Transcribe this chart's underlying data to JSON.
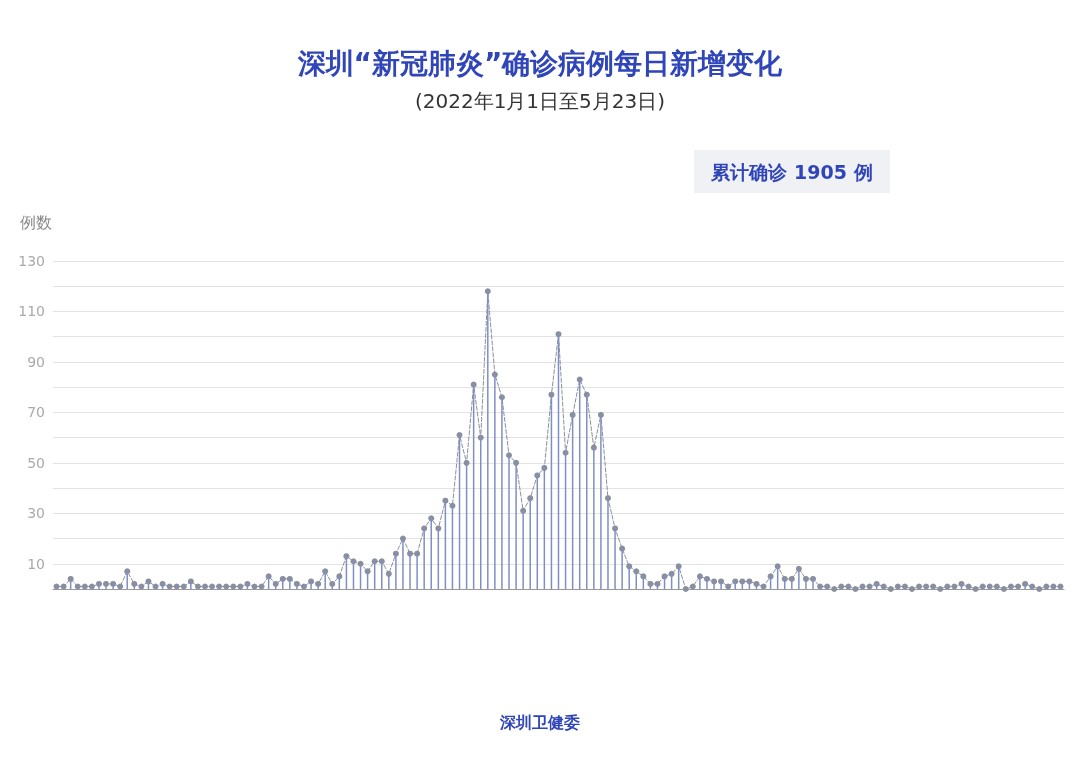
{
  "chart_data": {
    "type": "line",
    "title": "深圳“新冠肺炎”确诊病例每日新增变化",
    "subtitle": "(2022年1月1日至5月23日)",
    "ylabel": "例数",
    "annotations": [
      "累计确诊 1905 例",
      "深圳卫健委"
    ],
    "categories": [
      null,
      null,
      null,
      null,
      null,
      null,
      null,
      null,
      null,
      null,
      null,
      null,
      null,
      null,
      null,
      null,
      null,
      null,
      null,
      null,
      null,
      null,
      null,
      null,
      null,
      null,
      null,
      null,
      null,
      null,
      null,
      null,
      null,
      null,
      null,
      null,
      null,
      null,
      null,
      null,
      null,
      null,
      null,
      null,
      null,
      null,
      null,
      null,
      null,
      null,
      null,
      null,
      null,
      null,
      null,
      null,
      null,
      null,
      null,
      null,
      null,
      null,
      null,
      null,
      null,
      null,
      null,
      null,
      null,
      null,
      null,
      null,
      null,
      null,
      null,
      null,
      null,
      null,
      null,
      null,
      null,
      null,
      null,
      null,
      null,
      null,
      null,
      null,
      null,
      null,
      null,
      null,
      null,
      null,
      null,
      null,
      null,
      null,
      null,
      null,
      null,
      null,
      null,
      null,
      null,
      null,
      null,
      null,
      null,
      null,
      null,
      null,
      null,
      null,
      null,
      null,
      null,
      null,
      null,
      null,
      null,
      null,
      null,
      null,
      null,
      null,
      null,
      null,
      null,
      null,
      null,
      null,
      null,
      null,
      null,
      null,
      null,
      null,
      null,
      null,
      null,
      null,
      null
    ],
    "series": [
      {
        "type": "bar",
        "color": "#7f8fc4",
        "values": [
          1,
          1,
          4,
          1,
          1,
          1,
          2,
          2,
          2,
          1,
          7,
          2,
          1,
          3,
          1,
          2,
          1,
          1,
          1,
          3,
          1,
          1,
          1,
          1,
          1,
          1,
          1,
          2,
          1,
          1,
          5,
          2,
          4,
          4,
          2,
          1,
          3,
          2,
          7,
          2,
          5,
          13,
          11,
          10,
          7,
          11,
          11,
          6,
          14,
          20,
          14,
          14,
          24,
          28,
          24,
          35,
          33,
          61,
          50,
          81,
          60,
          118,
          85,
          76,
          53,
          50,
          31,
          36,
          45,
          48,
          77,
          101,
          54,
          69,
          83,
          77,
          56,
          69,
          36,
          24,
          16,
          9,
          7,
          5,
          2,
          2,
          5,
          6,
          9,
          0,
          1,
          5,
          4,
          3,
          3,
          1,
          3,
          3,
          3,
          2,
          1,
          5,
          9,
          4,
          4,
          8,
          4,
          4,
          1,
          1,
          0,
          1,
          1,
          0,
          1,
          1,
          2,
          1,
          0,
          1,
          1,
          0,
          1,
          1,
          1,
          0,
          1,
          1,
          2,
          1,
          0,
          1,
          1,
          1,
          0,
          1,
          1,
          2,
          1,
          0,
          1,
          1,
          1
        ]
      },
      {
        "color": "#8a8f9e",
        "values": [
          1,
          1,
          4,
          1,
          1,
          1,
          2,
          2,
          2,
          1,
          7,
          2,
          1,
          3,
          1,
          2,
          1,
          1,
          1,
          3,
          1,
          1,
          1,
          1,
          1,
          1,
          1,
          2,
          1,
          1,
          5,
          2,
          4,
          4,
          2,
          1,
          3,
          2,
          7,
          2,
          5,
          13,
          11,
          10,
          7,
          11,
          11,
          6,
          14,
          20,
          14,
          14,
          24,
          28,
          24,
          35,
          33,
          61,
          50,
          81,
          60,
          118,
          85,
          76,
          53,
          50,
          31,
          36,
          45,
          48,
          77,
          101,
          54,
          69,
          83,
          77,
          56,
          69,
          36,
          24,
          16,
          9,
          7,
          5,
          2,
          2,
          5,
          6,
          9,
          0,
          1,
          5,
          4,
          3,
          3,
          1,
          3,
          3,
          3,
          2,
          1,
          5,
          9,
          4,
          4,
          8,
          4,
          4,
          1,
          1,
          0,
          1,
          1,
          0,
          1,
          1,
          2,
          1,
          0,
          1,
          1,
          0,
          1,
          1,
          1,
          0,
          1,
          1,
          2,
          1,
          0,
          1,
          1,
          1,
          0,
          1,
          1,
          2,
          1,
          0,
          1,
          1,
          1
        ]
      }
    ],
    "ylim": [
      0,
      130
    ],
    "yticks": [
      {
        "value": 10,
        "label": "10"
      },
      {
        "value": 20,
        "label": null
      },
      {
        "value": 30,
        "label": "30"
      },
      {
        "value": 40,
        "label": null
      },
      {
        "value": 50,
        "label": "50"
      },
      {
        "value": 60,
        "label": null
      },
      {
        "value": 70,
        "label": "70"
      },
      {
        "value": 80,
        "label": null
      },
      {
        "value": 90,
        "label": "90"
      },
      {
        "value": 100,
        "label": null
      },
      {
        "value": 110,
        "label": "110"
      },
      {
        "value": 120,
        "label": null
      },
      {
        "value": 130,
        "label": "130"
      }
    ],
    "grid": "y",
    "tick_labels": "y",
    "marker": "circle",
    "line_style": "dashed"
  }
}
